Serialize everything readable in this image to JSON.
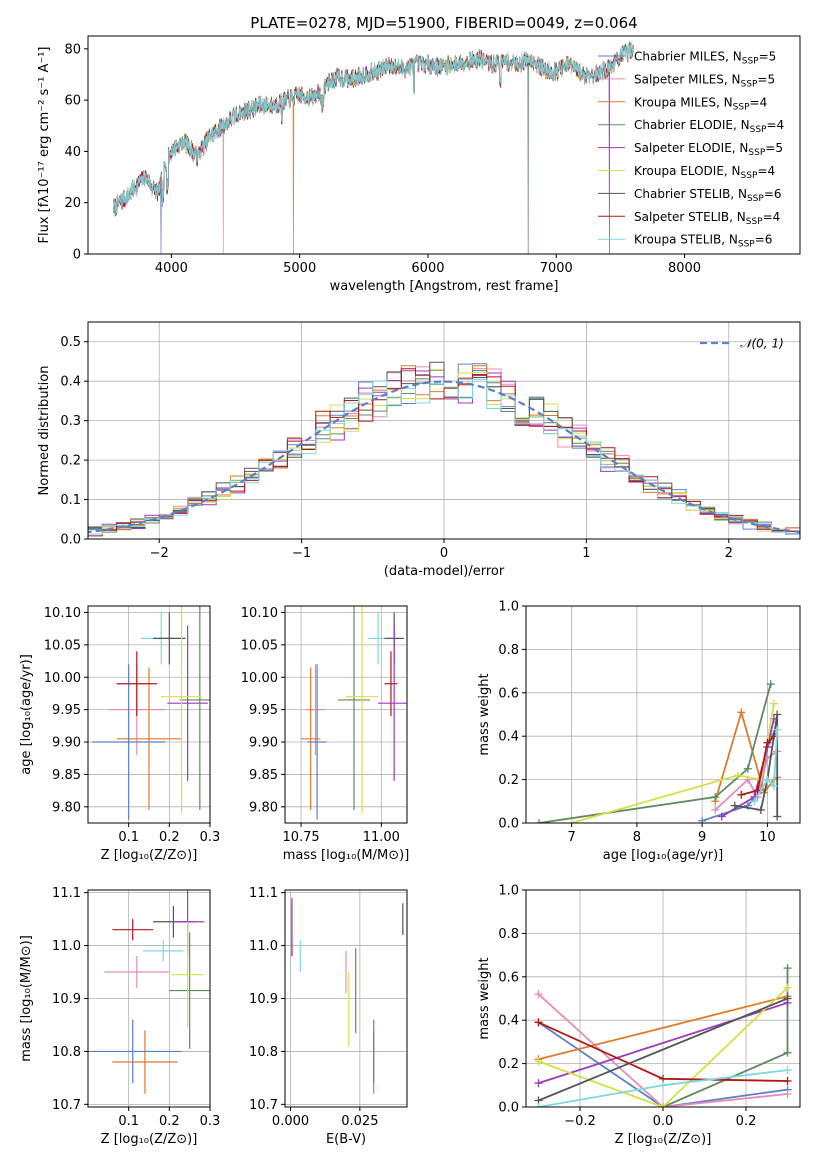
{
  "chart_data": [
    {
      "type": "line",
      "title": "PLATE=0278, MJD=51900, FIBERID=0049, z=0.064",
      "xlabel": "wavelength [Angstrom, rest frame]",
      "ylabel": "Flux [fλ10⁻¹⁷ erg cm⁻² s⁻¹ A⁻¹]",
      "xlim": [
        3350,
        8900
      ],
      "ylim": [
        0,
        85
      ],
      "xticks": [
        4000,
        5000,
        6000,
        7000,
        8000
      ],
      "yticks": [
        0,
        20,
        40,
        60,
        80
      ],
      "grid": false,
      "legend_position": "upper-right",
      "legend": [
        {
          "label": "Chabrier MILES, N",
          "sub": "SSP",
          "post": "=5",
          "color": "#5b80c8"
        },
        {
          "label": "Salpeter MILES, N",
          "sub": "SSP",
          "post": "=5",
          "color": "#e88bb8"
        },
        {
          "label": "Kroupa MILES, N",
          "sub": "SSP",
          "post": "=4",
          "color": "#e07a28"
        },
        {
          "label": "Chabrier ELODIE, N",
          "sub": "SSP",
          "post": "=4",
          "color": "#5e8a5e"
        },
        {
          "label": "Salpeter ELODIE, N",
          "sub": "SSP",
          "post": "=5",
          "color": "#9c3ab8"
        },
        {
          "label": "Kroupa ELODIE, N",
          "sub": "SSP",
          "post": "=4",
          "color": "#d4e048"
        },
        {
          "label": "Chabrier STELIB, N",
          "sub": "SSP",
          "post": "=6",
          "color": "#555555"
        },
        {
          "label": "Salpeter STELIB, N",
          "sub": "SSP",
          "post": "=4",
          "color": "#b01818"
        },
        {
          "label": "Kroupa STELIB, N",
          "sub": "SSP",
          "post": "=6",
          "color": "#7fd8e0"
        }
      ],
      "spectrum_envelope": {
        "x": [
          3550,
          3600,
          3650,
          3700,
          3750,
          3800,
          3850,
          3900,
          3950,
          4000,
          4100,
          4200,
          4300,
          4400,
          4500,
          4600,
          4700,
          4800,
          4900,
          5000,
          5100,
          5200,
          5300,
          5400,
          5500,
          5600,
          5700,
          5800,
          5900,
          6000,
          6100,
          6200,
          6300,
          6400,
          6500,
          6600,
          6700,
          6800,
          6900,
          7000,
          7100,
          7200,
          7300,
          7400,
          7500,
          7600
        ],
        "y": [
          18,
          20,
          22,
          25,
          28,
          30,
          26,
          24,
          35,
          40,
          44,
          38,
          46,
          50,
          54,
          56,
          58,
          58,
          60,
          62,
          61,
          66,
          69,
          68,
          70,
          71,
          74,
          72,
          74,
          74,
          73,
          74,
          75,
          76,
          74,
          75,
          74,
          76,
          72,
          71,
          74,
          70,
          70,
          72,
          77,
          80
        ]
      },
      "dropouts_x": [
        3920,
        4405,
        4950,
        6780,
        7415
      ]
    },
    {
      "type": "bar",
      "xlabel": "(data-model)/error",
      "ylabel": "Normed distribution",
      "xlim": [
        -2.5,
        2.5
      ],
      "ylim": [
        0,
        0.55
      ],
      "xticks": [
        -2,
        -1,
        0,
        1,
        2
      ],
      "yticks": [
        0.0,
        0.1,
        0.2,
        0.3,
        0.4,
        0.5
      ],
      "grid": true,
      "legend": [
        {
          "label": "𝒩(0, 1)",
          "color": "#5b80c8"
        }
      ],
      "legend_position": "upper-right",
      "bin_width": 0.1,
      "reference_curve": "standard normal pdf"
    },
    {
      "type": "scatter",
      "xlabel": "Z [log₁₀(Z/Z⊙)]",
      "ylabel": "age  [log₁₀(age/yr)]",
      "xlim": [
        0.0,
        0.3
      ],
      "ylim": [
        9.775,
        10.11
      ],
      "xticks": [
        0.1,
        0.2,
        0.3
      ],
      "yticks": [
        9.8,
        9.85,
        9.9,
        9.95,
        10.0,
        10.05,
        10.1
      ],
      "grid": true,
      "points": [
        {
          "x": 0.12,
          "y": 9.95,
          "xerr": 0.07,
          "yerr": 0.07,
          "color": "#e88bb8"
        },
        {
          "x": 0.15,
          "y": 9.905,
          "xerr": 0.08,
          "yerr": 0.11,
          "color": "#e07a28"
        },
        {
          "x": 0.1,
          "y": 9.9,
          "xerr": 0.09,
          "yerr": 0.12,
          "color": "#5b80c8"
        },
        {
          "x": 0.12,
          "y": 9.99,
          "xerr": 0.05,
          "yerr": 0.05,
          "color": "#b01818"
        },
        {
          "x": 0.18,
          "y": 10.06,
          "xerr": 0.05,
          "yerr": 0.04,
          "color": "#7fd8e0"
        },
        {
          "x": 0.2,
          "y": 10.06,
          "xerr": 0.04,
          "yerr": 0.04,
          "color": "#555555"
        },
        {
          "x": 0.245,
          "y": 9.96,
          "xerr": 0.05,
          "yerr": 0.12,
          "color": "#9c3ab8"
        },
        {
          "x": 0.275,
          "y": 9.965,
          "xerr": 0.05,
          "yerr": 0.17,
          "color": "#5e8a5e"
        },
        {
          "x": 0.23,
          "y": 9.97,
          "xerr": 0.05,
          "yerr": 0.18,
          "color": "#d4e048"
        }
      ]
    },
    {
      "type": "scatter",
      "xlabel": "mass [log₁₀(M/M⊙)]",
      "ylabel": "",
      "xlim": [
        10.7,
        11.08
      ],
      "ylim": [
        9.775,
        10.11
      ],
      "xticks": [
        10.75,
        11.0
      ],
      "xtick_labels": [
        "10.75",
        "11.00"
      ],
      "yticks": [
        9.8,
        9.85,
        9.9,
        9.95,
        10.0,
        10.05,
        10.1
      ],
      "grid": true,
      "points": [
        {
          "x": 10.795,
          "y": 9.95,
          "xerr": 0.03,
          "yerr": 0.07,
          "color": "#e88bb8"
        },
        {
          "x": 10.78,
          "y": 9.905,
          "xerr": 0.03,
          "yerr": 0.11,
          "color": "#e07a28"
        },
        {
          "x": 10.8,
          "y": 9.9,
          "xerr": 0.03,
          "yerr": 0.12,
          "color": "#5b80c8"
        },
        {
          "x": 11.03,
          "y": 9.99,
          "xerr": 0.02,
          "yerr": 0.05,
          "color": "#b01818"
        },
        {
          "x": 10.99,
          "y": 10.06,
          "xerr": 0.03,
          "yerr": 0.04,
          "color": "#7fd8e0"
        },
        {
          "x": 11.04,
          "y": 10.06,
          "xerr": 0.03,
          "yerr": 0.04,
          "color": "#555555"
        },
        {
          "x": 11.04,
          "y": 9.96,
          "xerr": 0.05,
          "yerr": 0.12,
          "color": "#9c3ab8"
        },
        {
          "x": 10.915,
          "y": 9.965,
          "xerr": 0.05,
          "yerr": 0.17,
          "color": "#5e8a5e"
        },
        {
          "x": 10.94,
          "y": 9.97,
          "xerr": 0.05,
          "yerr": 0.18,
          "color": "#d4e048"
        }
      ]
    },
    {
      "type": "line",
      "xlabel": "age  [log₁₀(age/yr)]",
      "ylabel": "mass weight",
      "xlim": [
        6.3,
        10.5
      ],
      "ylim": [
        0,
        1
      ],
      "xticks": [
        7,
        8,
        9,
        10
      ],
      "yticks": [
        0.0,
        0.2,
        0.4,
        0.6,
        0.8,
        1.0
      ],
      "grid": true,
      "series": [
        {
          "color": "#5b80c8",
          "x": [
            9.0,
            9.7,
            9.9,
            10.0,
            10.1
          ],
          "y": [
            0.01,
            0.08,
            0.15,
            0.35,
            0.41
          ]
        },
        {
          "color": "#e88bb8",
          "x": [
            9.2,
            9.7,
            9.85,
            10.0,
            10.15
          ],
          "y": [
            0.06,
            0.2,
            0.12,
            0.3,
            0.33
          ]
        },
        {
          "color": "#e07a28",
          "x": [
            9.2,
            9.6,
            9.95,
            10.1,
            10.15
          ],
          "y": [
            0.1,
            0.51,
            0.14,
            0.2,
            0.21
          ]
        },
        {
          "color": "#5e8a5e",
          "x": [
            6.5,
            9.2,
            9.7,
            10.05
          ],
          "y": [
            0.0,
            0.12,
            0.25,
            0.64
          ]
        },
        {
          "color": "#9c3ab8",
          "x": [
            9.3,
            9.8,
            10.0,
            10.1
          ],
          "y": [
            0.03,
            0.12,
            0.35,
            0.48
          ]
        },
        {
          "color": "#d4e048",
          "x": [
            7.0,
            9.55,
            9.9,
            10.1
          ],
          "y": [
            0.0,
            0.22,
            0.2,
            0.55
          ]
        },
        {
          "color": "#555555",
          "x": [
            9.5,
            9.9,
            10.0,
            10.15,
            10.15
          ],
          "y": [
            0.08,
            0.06,
            0.2,
            0.5,
            0.03
          ]
        },
        {
          "color": "#b01818",
          "x": [
            9.6,
            9.85,
            10.0,
            10.1
          ],
          "y": [
            0.13,
            0.15,
            0.37,
            0.4
          ]
        },
        {
          "color": "#7fd8e0",
          "x": [
            9.8,
            10.0,
            10.1,
            10.15
          ],
          "y": [
            0.1,
            0.2,
            0.17,
            0.43
          ]
        }
      ]
    },
    {
      "type": "scatter",
      "xlabel": "Z [log₁₀(Z/Z⊙)]",
      "ylabel": "mass [log₁₀(M/M⊙)]",
      "xlim": [
        0.0,
        0.3
      ],
      "ylim": [
        10.695,
        11.105
      ],
      "xticks": [
        0.1,
        0.2,
        0.3
      ],
      "yticks": [
        10.7,
        10.8,
        10.9,
        11.0,
        11.1
      ],
      "grid": true,
      "points": [
        {
          "x": 0.12,
          "y": 10.95,
          "xerr": 0.08,
          "yerr": 0.03,
          "color": "#e88bb8"
        },
        {
          "x": 0.14,
          "y": 10.78,
          "xerr": 0.08,
          "yerr": 0.06,
          "color": "#e07a28"
        },
        {
          "x": 0.11,
          "y": 10.8,
          "xerr": 0.12,
          "yerr": 0.06,
          "color": "#5b80c8"
        },
        {
          "x": 0.11,
          "y": 11.03,
          "xerr": 0.05,
          "yerr": 0.02,
          "color": "#b01818"
        },
        {
          "x": 0.185,
          "y": 10.99,
          "xerr": 0.05,
          "yerr": 0.02,
          "color": "#7fd8e0"
        },
        {
          "x": 0.21,
          "y": 11.045,
          "xerr": 0.05,
          "yerr": 0.03,
          "color": "#555555"
        },
        {
          "x": 0.245,
          "y": 11.045,
          "xerr": 0.04,
          "yerr": 0.06,
          "color": "#9c3ab8"
        },
        {
          "x": 0.25,
          "y": 10.915,
          "xerr": 0.05,
          "yerr": 0.11,
          "color": "#5e8a5e"
        },
        {
          "x": 0.245,
          "y": 10.945,
          "xerr": 0.04,
          "yerr": 0.1,
          "color": "#d4e048"
        }
      ]
    },
    {
      "type": "scatter",
      "xlabel": "E(B-V)",
      "ylabel": "",
      "xlim": [
        -0.002,
        0.042
      ],
      "ylim": [
        10.695,
        11.105
      ],
      "xticks": [
        0.0,
        0.025
      ],
      "xtick_labels": [
        "0.000",
        "0.025"
      ],
      "yticks": [
        10.7,
        10.8,
        10.9,
        11.0,
        11.1
      ],
      "grid": true,
      "points": [
        {
          "x": 0.02,
          "y": 10.95,
          "xerr": 0,
          "yerr": 0.04,
          "color": "#e88bb8"
        },
        {
          "x": 0.03,
          "y": 10.78,
          "xerr": 0,
          "yerr": 0.06,
          "color": "#e07a28"
        },
        {
          "x": 0.03,
          "y": 10.8,
          "xerr": 0,
          "yerr": 0.06,
          "color": "#5b80c8"
        },
        {
          "x": 0.0005,
          "y": 11.03,
          "xerr": 0,
          "yerr": 0.05,
          "color": "#b01818"
        },
        {
          "x": 0.0035,
          "y": 10.98,
          "xerr": 0,
          "yerr": 0.03,
          "color": "#7fd8e0"
        },
        {
          "x": 0.0405,
          "y": 11.05,
          "xerr": 0,
          "yerr": 0.03,
          "color": "#555555"
        },
        {
          "x": 0.0005,
          "y": 11.04,
          "xerr": 0,
          "yerr": 0.05,
          "color": "#9c3ab8"
        },
        {
          "x": 0.0235,
          "y": 10.915,
          "xerr": 0,
          "yerr": 0.08,
          "color": "#5e8a5e"
        },
        {
          "x": 0.021,
          "y": 10.88,
          "xerr": 0,
          "yerr": 0.07,
          "color": "#d4e048"
        }
      ]
    },
    {
      "type": "line",
      "xlabel": "Z [log₁₀(Z/Z⊙)]",
      "ylabel": "mass weight",
      "xlim": [
        -0.33,
        0.33
      ],
      "ylim": [
        0,
        1
      ],
      "xticks": [
        -0.2,
        0.0,
        0.2
      ],
      "xtick_labels": [
        "−0.2",
        "0.0",
        "0.2"
      ],
      "yticks": [
        0.0,
        0.2,
        0.4,
        0.6,
        0.8,
        1.0
      ],
      "grid": true,
      "series": [
        {
          "color": "#5b80c8",
          "x": [
            -0.3,
            0.0,
            0.3
          ],
          "y": [
            0.39,
            0.0,
            0.08
          ]
        },
        {
          "color": "#e88bb8",
          "x": [
            -0.3,
            0.0,
            0.3
          ],
          "y": [
            0.52,
            0.0,
            0.06
          ]
        },
        {
          "color": "#e07a28",
          "x": [
            -0.3,
            0.3
          ],
          "y": [
            0.22,
            0.51
          ]
        },
        {
          "color": "#5e8a5e",
          "x": [
            0.0,
            0.3,
            0.3
          ],
          "y": [
            0.0,
            0.25,
            0.64
          ]
        },
        {
          "color": "#9c3ab8",
          "x": [
            -0.3,
            0.3
          ],
          "y": [
            0.11,
            0.48
          ]
        },
        {
          "color": "#d4e048",
          "x": [
            -0.3,
            0.0,
            0.3
          ],
          "y": [
            0.21,
            0.0,
            0.55
          ]
        },
        {
          "color": "#555555",
          "x": [
            -0.3,
            0.3
          ],
          "y": [
            0.03,
            0.5
          ]
        },
        {
          "color": "#b01818",
          "x": [
            -0.3,
            0.0,
            0.3
          ],
          "y": [
            0.39,
            0.13,
            0.12
          ]
        },
        {
          "color": "#7fd8e0",
          "x": [
            -0.3,
            0.0,
            0.3
          ],
          "y": [
            0.0,
            0.1,
            0.17
          ]
        }
      ]
    }
  ]
}
